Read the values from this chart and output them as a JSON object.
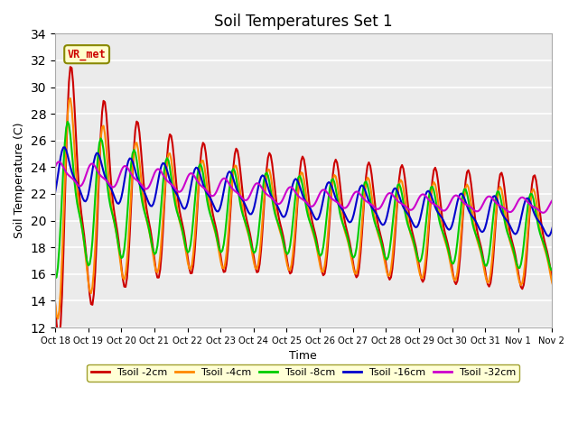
{
  "title": "Soil Temperatures Set 1",
  "xlabel": "Time",
  "ylabel": "Soil Temperature (C)",
  "ylim": [
    12,
    34
  ],
  "yticks": [
    12,
    14,
    16,
    18,
    20,
    22,
    24,
    26,
    28,
    30,
    32,
    34
  ],
  "xtick_labels": [
    "Oct 18",
    "Oct 19",
    "Oct 20",
    "Oct 21",
    "Oct 22",
    "Oct 23",
    "Oct 24",
    "Oct 25",
    "Oct 26",
    "Oct 27",
    "Oct 28",
    "Oct 29",
    "Oct 30",
    "Oct 31",
    "Nov 1",
    "Nov 2"
  ],
  "series_colors": [
    "#cc0000",
    "#ff8800",
    "#00cc00",
    "#0000cc",
    "#cc00cc"
  ],
  "series_names": [
    "Tsoil -2cm",
    "Tsoil -4cm",
    "Tsoil -8cm",
    "Tsoil -16cm",
    "Tsoil -32cm"
  ],
  "legend_box_color": "#ffffcc",
  "legend_box_edge": "#888800",
  "annotation_text": "VR_met",
  "annotation_color": "#cc0000",
  "annotation_bg": "#ffffcc",
  "annotation_edge": "#888800",
  "plot_bg_color": "#ebebeb",
  "grid_color": "#ffffff",
  "title_fontsize": 12
}
